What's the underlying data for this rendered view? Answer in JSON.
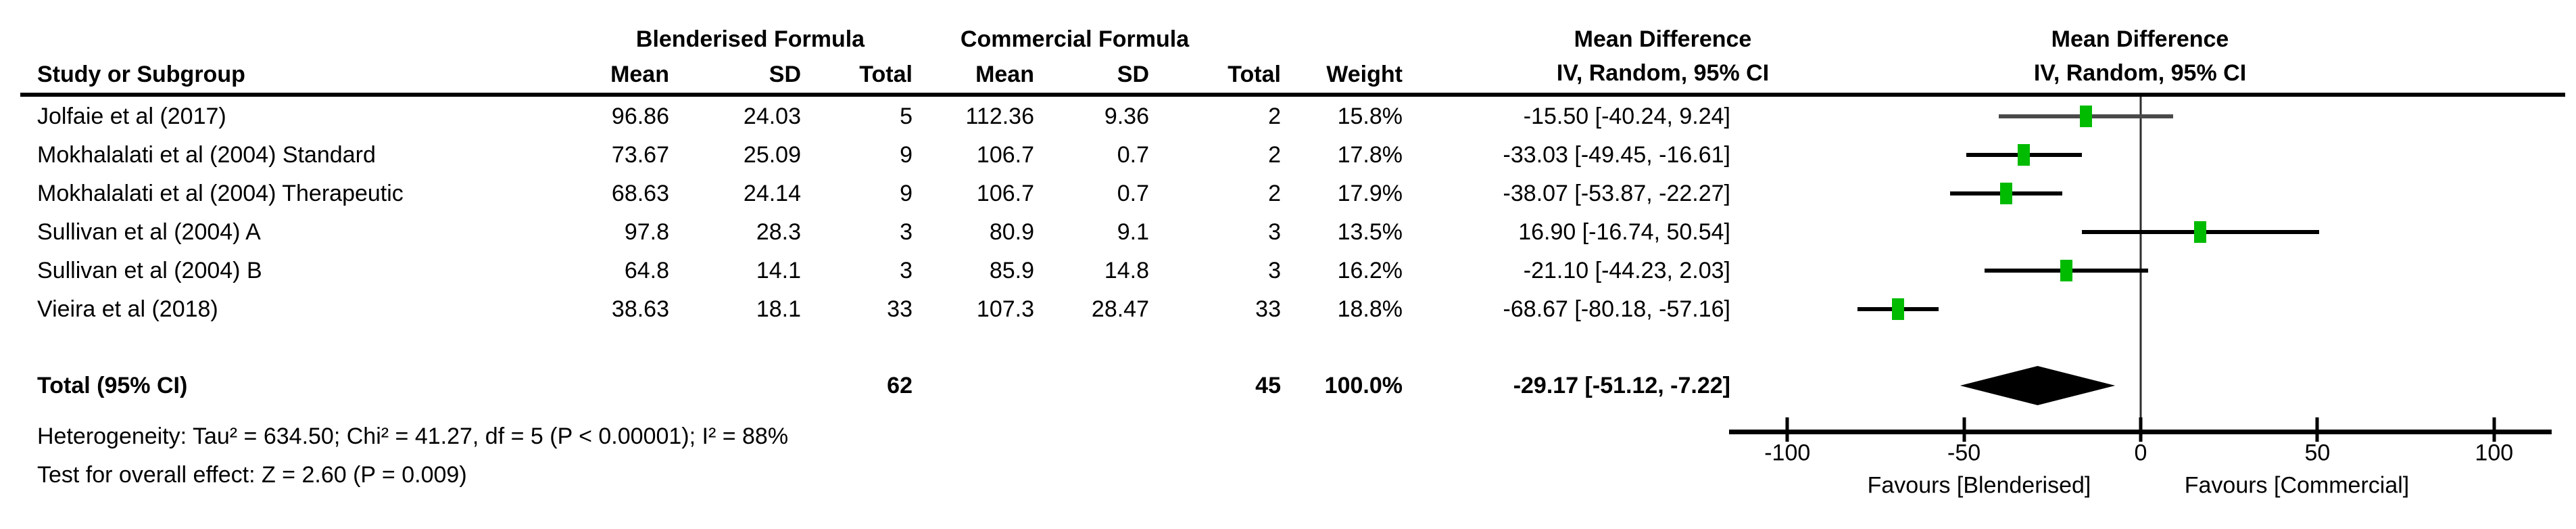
{
  "header": {
    "group1": "Blenderised Formula",
    "group2": "Commercial Formula",
    "md_text_line1": "Mean Difference",
    "md_text_line2": "IV, Random, 95% CI",
    "md_plot_line1": "Mean Difference",
    "md_plot_line2": "IV, Random, 95% CI",
    "study": "Study or Subgroup",
    "mean": "Mean",
    "sd": "SD",
    "total": "Total",
    "weight": "Weight"
  },
  "rows": [
    {
      "study": "Jolfaie et al (2017)",
      "bf_mean": "96.86",
      "bf_sd": "24.03",
      "bf_total": "5",
      "cf_mean": "112.36",
      "cf_sd": "9.36",
      "cf_total": "2",
      "weight": "15.8%",
      "ci": "-15.50 [-40.24, 9.24]"
    },
    {
      "study": "Mokhalalati et al (2004) Standard",
      "bf_mean": "73.67",
      "bf_sd": "25.09",
      "bf_total": "9",
      "cf_mean": "106.7",
      "cf_sd": "0.7",
      "cf_total": "2",
      "weight": "17.8%",
      "ci": "-33.03 [-49.45, -16.61]"
    },
    {
      "study": "Mokhalalati et al (2004) Therapeutic",
      "bf_mean": "68.63",
      "bf_sd": "24.14",
      "bf_total": "9",
      "cf_mean": "106.7",
      "cf_sd": "0.7",
      "cf_total": "2",
      "weight": "17.9%",
      "ci": "-38.07 [-53.87, -22.27]"
    },
    {
      "study": "Sullivan et al (2004) A",
      "bf_mean": "97.8",
      "bf_sd": "28.3",
      "bf_total": "3",
      "cf_mean": "80.9",
      "cf_sd": "9.1",
      "cf_total": "3",
      "weight": "13.5%",
      "ci": "16.90 [-16.74, 50.54]"
    },
    {
      "study": "Sullivan et al (2004) B",
      "bf_mean": "64.8",
      "bf_sd": "14.1",
      "bf_total": "3",
      "cf_mean": "85.9",
      "cf_sd": "14.8",
      "cf_total": "3",
      "weight": "16.2%",
      "ci": "-21.10 [-44.23, 2.03]"
    },
    {
      "study": "Vieira et al (2018)",
      "bf_mean": "38.63",
      "bf_sd": "18.1",
      "bf_total": "33",
      "cf_mean": "107.3",
      "cf_sd": "28.47",
      "cf_total": "33",
      "weight": "18.8%",
      "ci": "-68.67 [-80.18, -57.16]"
    }
  ],
  "total_row": {
    "label": "Total (95% CI)",
    "bf_total": "62",
    "cf_total": "45",
    "weight": "100.0%",
    "ci": "-29.17 [-51.12, -7.22]"
  },
  "footnotes": {
    "heterogeneity": "Heterogeneity: Tau² = 634.50; Chi² = 41.27, df = 5 (P < 0.00001); I² = 88%",
    "overall_effect": "Test for overall effect: Z = 2.60 (P = 0.009)"
  },
  "axis": {
    "tick_labels": [
      "-100",
      "-50",
      "0",
      "50",
      "100"
    ],
    "favours_left": "Favours [Blenderised]",
    "favours_right": "Favours [Commercial]"
  },
  "colors": {
    "marker": "#00bb00",
    "summary_diamond": "#000000",
    "axis": "#000000",
    "zero_line": "#2e2e2e",
    "ci_line_colors": [
      "#4a4a4a",
      "#000000",
      "#000000",
      "#000000",
      "#000000",
      "#000000"
    ]
  },
  "chart_data": {
    "type": "forest",
    "title": "Mean Difference",
    "effect_measure": "IV, Random, 95% CI",
    "xlim": [
      -116.5,
      116.3
    ],
    "x_ticks": [
      -100,
      -50,
      0,
      50,
      100
    ],
    "xlabel_left": "Favours [Blenderised]",
    "xlabel_right": "Favours [Commercial]",
    "studies": [
      {
        "name": "Jolfaie et al (2017)",
        "estimate": -15.5,
        "ci_low": -40.24,
        "ci_high": 9.24,
        "weight_pct": 15.8
      },
      {
        "name": "Mokhalalati et al (2004) Standard",
        "estimate": -33.03,
        "ci_low": -49.45,
        "ci_high": -16.61,
        "weight_pct": 17.8
      },
      {
        "name": "Mokhalalati et al (2004) Therapeutic",
        "estimate": -38.07,
        "ci_low": -53.87,
        "ci_high": -22.27,
        "weight_pct": 17.9
      },
      {
        "name": "Sullivan et al (2004) A",
        "estimate": 16.9,
        "ci_low": -16.74,
        "ci_high": 50.54,
        "weight_pct": 13.5
      },
      {
        "name": "Sullivan et al (2004) B",
        "estimate": -21.1,
        "ci_low": -44.23,
        "ci_high": 2.03,
        "weight_pct": 16.2
      },
      {
        "name": "Vieira et al (2018)",
        "estimate": -68.67,
        "ci_low": -80.18,
        "ci_high": -57.16,
        "weight_pct": 18.8
      }
    ],
    "overall": {
      "name": "Total (95% CI)",
      "estimate": -29.17,
      "ci_low": -51.12,
      "ci_high": -7.22,
      "weight_pct": 100.0
    },
    "heterogeneity": {
      "tau2": 634.5,
      "chi2": 41.27,
      "df": 5,
      "p": "< 0.00001",
      "i2_pct": 88
    },
    "overall_test": {
      "z": 2.6,
      "p": 0.009
    }
  }
}
